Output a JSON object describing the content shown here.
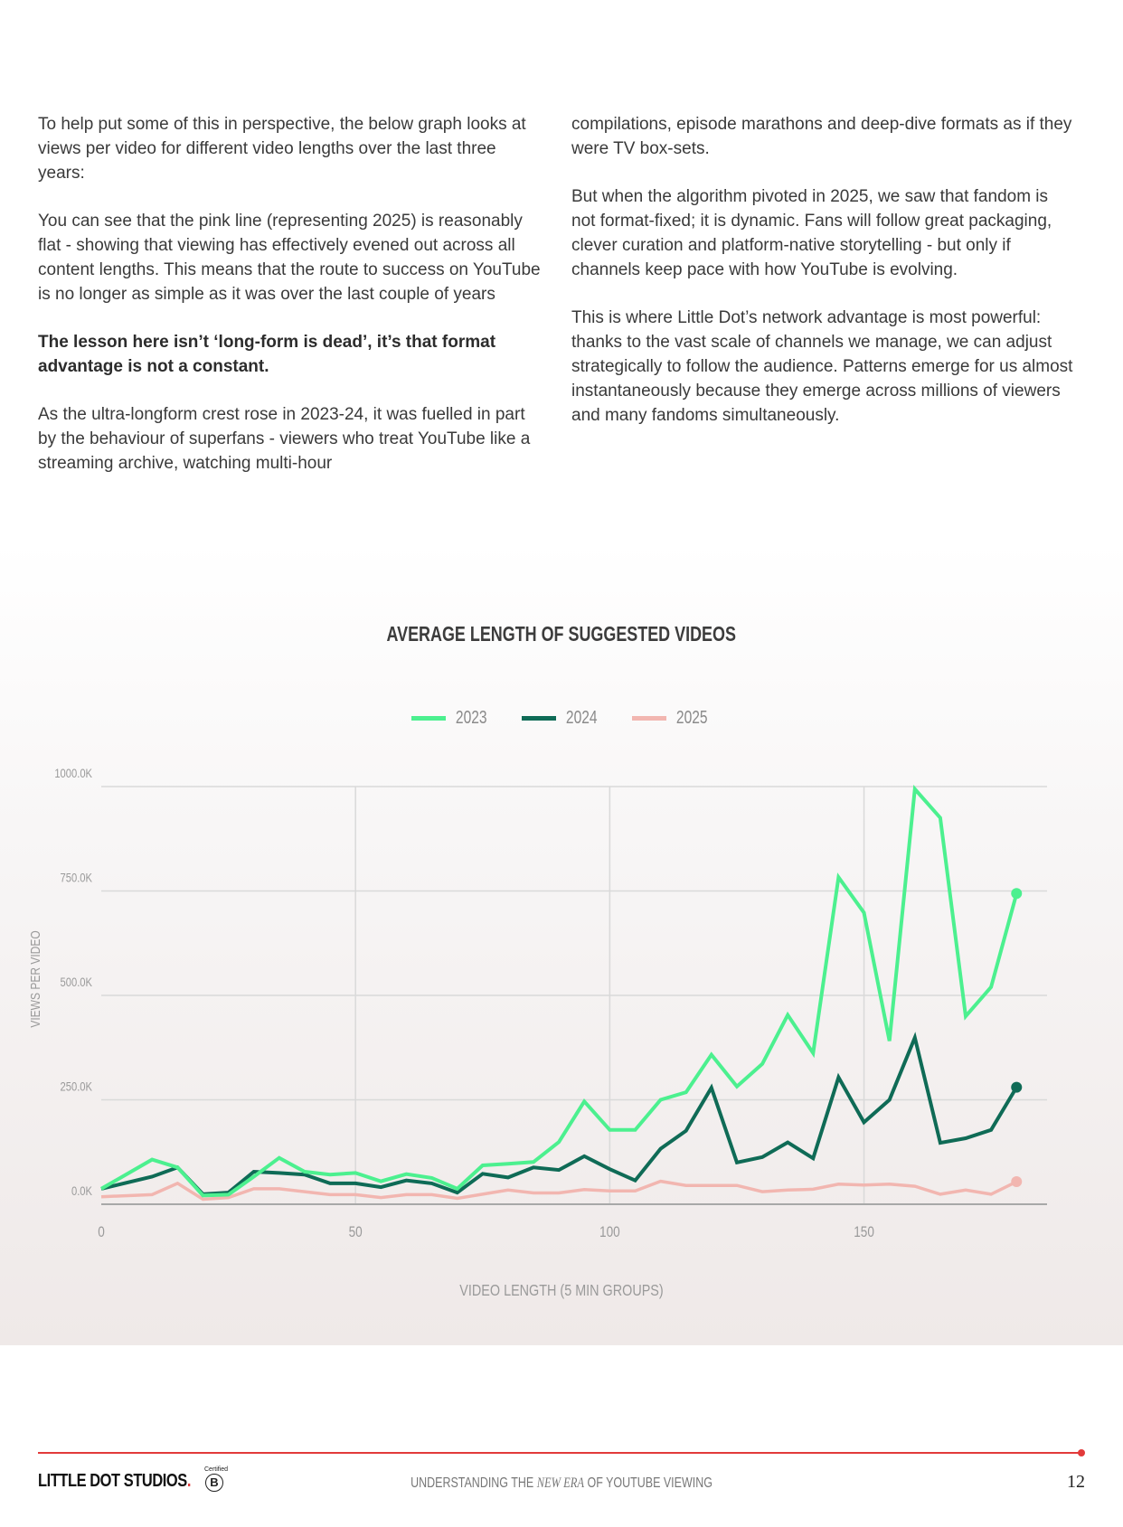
{
  "left_column": [
    "To help put some of this in perspective, the below graph looks at views per video for different video lengths over the last three years:",
    "You can see that the pink line (representing 2025) is reasonably flat - showing that viewing has effectively evened out across all content lengths. This means that the route to success on YouTube is no longer as simple as it was over the last couple of years",
    "The lesson here isn’t ‘long-form is dead’, it’s that format advantage is not a constant.",
    "As the ultra-longform crest rose in 2023-24, it was fuelled in part by the behaviour of superfans - viewers who treat YouTube like a streaming archive, watching multi-hour"
  ],
  "right_column": [
    "compilations, episode marathons and deep-dive formats as if they were TV box-sets.",
    "But when the algorithm pivoted in 2025, we saw that fandom is not format-fixed; it is dynamic. Fans will follow great packaging, clever curation and platform-native storytelling - but only if channels keep pace with how YouTube is evolving.",
    "This is where Little Dot’s network advantage is most powerful: thanks to the vast scale of channels we manage, we can adjust strategically to follow the audience. Patterns emerge for us almost instantaneously because they emerge across millions of viewers and many fandoms simultaneously."
  ],
  "chart_data": {
    "type": "line",
    "title": "AVERAGE LENGTH OF SUGGESTED VIDEOS",
    "xlabel": "VIDEO LENGTH (5 MIN GROUPS)",
    "ylabel": "VIEWS PER VIDEO",
    "xlim": [
      0,
      186
    ],
    "ylim": [
      0,
      1000
    ],
    "x_ticks": [
      "0",
      "50",
      "100",
      "150"
    ],
    "x_tick_values": [
      0,
      50,
      100,
      150
    ],
    "y_ticks": [
      "0.0K",
      "250.0K",
      "500.0K",
      "750.0K",
      "1000.0K"
    ],
    "y_tick_values": [
      0,
      250,
      500,
      750,
      1000
    ],
    "grid": true,
    "legend_position": "top-center",
    "x": [
      0,
      10,
      15,
      20,
      25,
      30,
      35,
      40,
      45,
      50,
      55,
      60,
      65,
      70,
      75,
      80,
      85,
      90,
      95,
      100,
      105,
      110,
      115,
      120,
      125,
      130,
      135,
      140,
      145,
      150,
      155,
      160,
      165,
      170,
      175,
      180
    ],
    "series": [
      {
        "name": "2023",
        "color": "#4cf08f",
        "values": [
          37,
          107,
          88,
          21,
          23,
          66,
          111,
          78,
          71,
          75,
          55,
          72,
          63,
          37,
          93,
          97,
          101,
          149,
          246,
          178,
          178,
          250,
          268,
          358,
          282,
          336,
          453,
          362,
          783,
          698,
          391,
          994,
          925,
          450,
          520,
          744
        ]
      },
      {
        "name": "2024",
        "color": "#0f6b56",
        "values": [
          37,
          66,
          88,
          24,
          28,
          78,
          75,
          71,
          50,
          50,
          41,
          57,
          50,
          28,
          73,
          64,
          88,
          82,
          115,
          84,
          57,
          133,
          176,
          279,
          100,
          113,
          148,
          110,
          304,
          196,
          250,
          399,
          147,
          158,
          178,
          280
        ]
      },
      {
        "name": "2025",
        "color": "#f2b6b0",
        "values": [
          18,
          23,
          50,
          12,
          16,
          37,
          37,
          30,
          23,
          23,
          16,
          23,
          23,
          14,
          24,
          34,
          27,
          27,
          35,
          32,
          32,
          55,
          45,
          45,
          45,
          30,
          34,
          36,
          48,
          46,
          48,
          43,
          24,
          34,
          24,
          54
        ]
      }
    ]
  },
  "footer": {
    "logo_text": "LITTLE DOT STUDIOS",
    "logo_dot": ".",
    "bcorp_label": "Certified",
    "bcorp_letter": "B",
    "title_pre": "UNDERSTANDING THE ",
    "title_em": "NEW ERA",
    "title_post": " OF YOUTUBE VIEWING",
    "page_number": "12",
    "accent_color": "#e23a3a"
  }
}
